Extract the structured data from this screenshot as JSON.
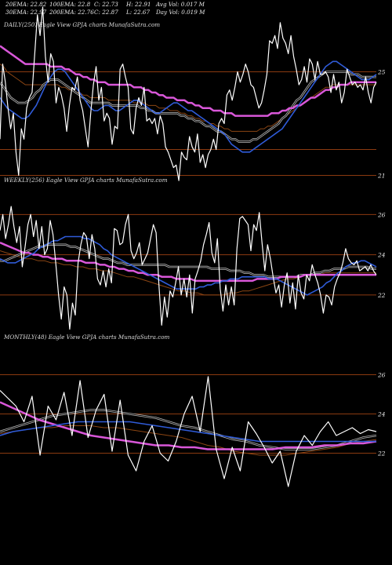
{
  "header": {
    "row1": [
      "20EMA: 22.82",
      "100EMA: 22.8",
      "C: 22.73",
      "H: 22.91",
      "Avg Vol: 0.017 M"
    ],
    "row2": [
      "30EMA: 22.97",
      "200EMA: 22.76",
      "C: 22.87",
      "L: 22.67",
      "Day Vol: 0.019 M"
    ]
  },
  "colors": {
    "background": "#000000",
    "price": "#ffffff",
    "ema_blue": "#2f5bd8",
    "ema_magenta": "#d957d9",
    "ema_brown": "#8b4513",
    "ema_gray": "#bbbbbb",
    "hline": "#8b3a10"
  },
  "chart_data": [
    {
      "type": "line",
      "title": "DAILY(250) Eagle   View  GPJA charts MunafaSutra.com",
      "yticks": [
        "25",
        "21"
      ],
      "ylim": [
        20.5,
        26.5
      ],
      "ref_lines": [
        25.0,
        22.0,
        21.0
      ],
      "price": [
        22.4,
        25.3,
        24.6,
        23.6,
        22.8,
        23.4,
        21.9,
        21.0,
        22.8,
        22.4,
        23.6,
        24.0,
        24.2,
        25.7,
        27.2,
        26.4,
        27.5,
        25.6,
        24.6,
        25.7,
        25.4,
        23.8,
        24.4,
        24.1,
        23.6,
        22.7,
        23.7,
        24.4,
        24.3,
        24.8,
        23.9,
        23.5,
        22.8,
        22.1,
        23.4,
        24.5,
        25.2,
        23.9,
        24.4,
        23.1,
        23.4,
        23.2,
        22.2,
        22.9,
        22.8,
        25.1,
        25.3,
        24.8,
        24.4,
        22.8,
        22.6,
        23.6,
        24.0,
        23.7,
        24.4,
        23.1,
        23.2,
        23.0,
        23.2,
        22.6,
        23.3,
        23.0,
        22.1,
        21.9,
        21.6,
        21.3,
        21.4,
        20.8,
        21.9,
        21.7,
        21.6,
        22.5,
        22.1,
        21.9,
        22.6,
        21.5,
        21.8,
        21.3,
        21.8,
        22.0,
        22.4,
        22.0,
        23.0,
        23.2,
        23.0,
        24.1,
        24.3,
        23.9,
        24.4,
        25.0,
        24.6,
        24.9,
        25.3,
        25.0,
        24.5,
        24.4,
        24.0,
        23.6,
        23.8,
        24.3,
        24.9,
        26.2,
        26.1,
        26.4,
        25.9,
        26.9,
        26.3,
        26.1,
        25.7,
        26.4,
        25.6,
        25.1,
        24.5,
        24.7,
        25.2,
        24.6,
        25.5,
        25.3,
        24.7,
        25.4,
        24.9,
        24.9,
        25.0,
        24.8,
        24.2,
        24.9,
        24.3,
        24.6,
        23.8,
        24.2,
        25.1,
        24.8,
        24.5,
        24.6,
        24.4,
        24.5,
        24.3,
        24.8,
        24.2,
        23.8,
        24.4,
        24.6
      ],
      "ema_blue": [
        24.0,
        23.8,
        23.6,
        23.5,
        23.4,
        23.3,
        23.2,
        23.2,
        23.3,
        23.5,
        23.7,
        24.0,
        24.3,
        24.6,
        24.8,
        25.0,
        25.1,
        25.1,
        25.0,
        24.8,
        24.6,
        24.4,
        24.2,
        24.0,
        23.8,
        23.6,
        23.5,
        23.5,
        23.6,
        23.7,
        23.7,
        23.6,
        23.5,
        23.5,
        23.6,
        23.7,
        23.8,
        23.9,
        23.9,
        23.8,
        23.7,
        23.6,
        23.5,
        23.4,
        23.4,
        23.5,
        23.6,
        23.7,
        23.8,
        23.8,
        23.7,
        23.6,
        23.5,
        23.5,
        23.4,
        23.3,
        23.2,
        23.1,
        23.0,
        22.9,
        22.8,
        22.7,
        22.6,
        22.4,
        22.2,
        22.1,
        22.0,
        21.9,
        21.9,
        21.9,
        22.0,
        22.1,
        22.2,
        22.3,
        22.4,
        22.5,
        22.6,
        22.7,
        22.8,
        23.0,
        23.2,
        23.4,
        23.6,
        23.8,
        24.0,
        24.2,
        24.4,
        24.6,
        24.8,
        25.0,
        25.2,
        25.3,
        25.4,
        25.4,
        25.3,
        25.2,
        25.1,
        25.0,
        24.9,
        24.8,
        24.7,
        24.7,
        24.7,
        24.8,
        24.9
      ],
      "ema_gray": [
        24.6,
        24.4,
        24.2,
        24.0,
        23.9,
        23.8,
        23.8,
        23.8,
        23.9,
        24.0,
        24.2,
        24.3,
        24.5,
        24.6,
        24.7,
        24.7,
        24.7,
        24.6,
        24.5,
        24.4,
        24.3,
        24.2,
        24.1,
        24.0,
        23.9,
        23.8,
        23.8,
        23.8,
        23.8,
        23.8,
        23.8,
        23.7,
        23.7,
        23.7,
        23.7,
        23.7,
        23.7,
        23.7,
        23.7,
        23.6,
        23.6,
        23.5,
        23.5,
        23.4,
        23.4,
        23.4,
        23.4,
        23.4,
        23.4,
        23.4,
        23.3,
        23.3,
        23.2,
        23.2,
        23.1,
        23.1,
        23.0,
        22.9,
        22.9,
        22.8,
        22.7,
        22.7,
        22.6,
        22.5,
        22.4,
        22.4,
        22.3,
        22.3,
        22.3,
        22.3,
        22.4,
        22.4,
        22.5,
        22.6,
        22.7,
        22.8,
        22.9,
        23.0,
        23.2,
        23.3,
        23.5,
        23.7,
        23.9,
        24.0,
        24.2,
        24.4,
        24.6,
        24.7,
        24.8,
        24.9,
        25.0,
        25.0,
        25.0,
        25.0,
        25.0,
        25.0,
        25.0,
        24.9,
        24.9,
        24.9,
        24.8,
        24.8,
        24.8,
        24.8,
        24.8
      ],
      "ema_magenta": [
        26.0,
        25.9,
        25.8,
        25.7,
        25.6,
        25.5,
        25.4,
        25.3,
        25.3,
        25.3,
        25.3,
        25.3,
        25.3,
        25.3,
        25.2,
        25.2,
        25.2,
        25.2,
        25.1,
        25.1,
        25.0,
        24.9,
        24.9,
        24.8,
        24.8,
        24.7,
        24.7,
        24.6,
        24.6,
        24.6,
        24.5,
        24.5,
        24.5,
        24.5,
        24.5,
        24.5,
        24.5,
        24.4,
        24.4,
        24.4,
        24.3,
        24.3,
        24.2,
        24.2,
        24.1,
        24.1,
        24.0,
        24.0,
        24.0,
        23.9,
        23.9,
        23.9,
        23.8,
        23.8,
        23.7,
        23.7,
        23.6,
        23.6,
        23.6,
        23.5,
        23.5,
        23.5,
        23.4,
        23.4,
        23.4,
        23.3,
        23.3,
        23.3,
        23.3,
        23.3,
        23.3,
        23.3,
        23.3,
        23.3,
        23.3,
        23.4,
        23.4,
        23.4,
        23.5,
        23.5,
        23.6,
        23.6,
        23.7,
        23.7,
        23.8,
        23.9,
        24.0,
        24.0,
        24.1,
        24.2,
        24.3,
        24.3,
        24.4,
        24.4,
        24.5,
        24.5,
        24.5,
        24.6,
        24.6,
        24.6,
        24.6,
        24.6,
        24.6,
        24.6,
        24.6
      ],
      "ema_brown": [
        25.3,
        25.2,
        25.0,
        24.9,
        24.8,
        24.7,
        24.6,
        24.5,
        24.5,
        24.5,
        24.5,
        24.5,
        24.5,
        24.5,
        24.5,
        24.5,
        24.5,
        24.4,
        24.4,
        24.3,
        24.3,
        24.2,
        24.2,
        24.1,
        24.1,
        24.0,
        24.0,
        24.0,
        24.0,
        24.0,
        23.9,
        23.9,
        23.9,
        23.9,
        23.9,
        23.9,
        23.9,
        23.8,
        23.8,
        23.8,
        23.8,
        23.7,
        23.7,
        23.7,
        23.6,
        23.6,
        23.6,
        23.5,
        23.5,
        23.5,
        23.4,
        23.4,
        23.3,
        23.3,
        23.2,
        23.2,
        23.1,
        23.1,
        23.0,
        23.0,
        22.9,
        22.9,
        22.8,
        22.8,
        22.7,
        22.7,
        22.7,
        22.7,
        22.7,
        22.7,
        22.7,
        22.7,
        22.8,
        22.8,
        22.9,
        22.9,
        23.0,
        23.1,
        23.2,
        23.3,
        23.4,
        23.5,
        23.6,
        23.7,
        23.8,
        23.9,
        24.0,
        24.1,
        24.2,
        24.3,
        24.4,
        24.4,
        24.5,
        24.5,
        24.5,
        24.5,
        24.5,
        24.5,
        24.5,
        24.5,
        24.5,
        24.5,
        24.5,
        24.5,
        24.5
      ]
    },
    {
      "type": "line",
      "title": "WEEKLY(256) Eagle   View  GPJA charts MunafaSutra.com",
      "yticks": [
        "26",
        "24",
        "22"
      ],
      "ylim": [
        19.5,
        27.3
      ],
      "ref_lines": [
        26.0,
        24.0,
        22.0
      ],
      "price": [
        25.2,
        26.0,
        24.8,
        25.5,
        26.4,
        25.4,
        24.6,
        25.4,
        23.4,
        24.4,
        25.5,
        26.0,
        24.9,
        25.7,
        24.3,
        25.4,
        24.0,
        24.3,
        25.7,
        25.0,
        23.6,
        22.0,
        20.8,
        22.4,
        22.0,
        20.3,
        21.6,
        21.0,
        23.6,
        24.5,
        25.1,
        24.9,
        23.8,
        25.0,
        24.3,
        22.8,
        22.5,
        23.2,
        22.4,
        23.3,
        22.6,
        25.3,
        25.2,
        24.5,
        24.6,
        25.5,
        26.0,
        24.2,
        23.8,
        24.1,
        24.6,
        23.5,
        23.8,
        24.1,
        24.8,
        25.5,
        25.1,
        22.5,
        20.5,
        21.9,
        20.9,
        22.2,
        21.9,
        22.6,
        23.4,
        22.0,
        22.8,
        21.9,
        23.0,
        21.1,
        22.8,
        23.2,
        23.7,
        24.5,
        25.0,
        25.6,
        24.1,
        23.6,
        24.8,
        22.3,
        21.2,
        22.5,
        21.5,
        22.4,
        21.5,
        24.3,
        25.8,
        25.9,
        25.7,
        25.5,
        24.2,
        25.5,
        25.2,
        26.1,
        24.6,
        23.2,
        24.5,
        23.8,
        22.9,
        22.1,
        22.5,
        21.4,
        22.5,
        23.1,
        21.6,
        22.6,
        21.3,
        23.0,
        22.1,
        21.8,
        23.0,
        22.7,
        23.5,
        23.0,
        22.6,
        22.0,
        21.1,
        22.0,
        21.9,
        21.5,
        22.4,
        22.8,
        23.1,
        23.6,
        24.3,
        23.8,
        23.6,
        23.5,
        23.7,
        23.2,
        23.3,
        23.4,
        23.2,
        23.5,
        23.2,
        23.0
      ],
      "ema_blue": [
        23.8,
        23.7,
        23.6,
        23.6,
        23.6,
        23.7,
        23.8,
        23.9,
        24.0,
        24.1,
        24.3,
        24.4,
        24.5,
        24.6,
        24.7,
        24.7,
        24.8,
        24.9,
        24.9,
        24.9,
        24.9,
        24.9,
        24.8,
        24.8,
        24.7,
        24.6,
        24.5,
        24.3,
        24.2,
        24.0,
        23.9,
        23.8,
        23.7,
        23.6,
        23.5,
        23.4,
        23.3,
        23.2,
        23.1,
        23.0,
        22.9,
        22.8,
        22.7,
        22.6,
        22.5,
        22.4,
        22.3,
        22.3,
        22.3,
        22.3,
        22.3,
        22.3,
        22.4,
        22.4,
        22.5,
        22.5,
        22.6,
        22.6,
        22.7,
        22.7,
        22.8,
        22.8,
        22.8,
        22.9,
        22.9,
        22.9,
        22.9,
        22.9,
        22.9,
        22.9,
        22.8,
        22.8,
        22.8,
        22.7,
        22.6,
        22.5,
        22.4,
        22.3,
        22.2,
        22.1,
        22.0,
        22.1,
        22.2,
        22.3,
        22.4,
        22.6,
        22.7,
        22.9,
        23.1,
        23.2,
        23.4,
        23.5,
        23.6,
        23.6,
        23.7,
        23.7,
        23.6,
        23.5,
        23.4
      ],
      "ema_gray": [
        23.7,
        23.7,
        23.8,
        23.9,
        24.0,
        24.1,
        24.2,
        24.3,
        24.4,
        24.4,
        24.5,
        24.5,
        24.5,
        24.5,
        24.5,
        24.4,
        24.4,
        24.3,
        24.2,
        24.1,
        24.0,
        23.9,
        23.8,
        23.8,
        23.7,
        23.6,
        23.6,
        23.5,
        23.5,
        23.5,
        23.5,
        23.5,
        23.5,
        23.5,
        23.5,
        23.5,
        23.4,
        23.4,
        23.4,
        23.4,
        23.4,
        23.4,
        23.4,
        23.4,
        23.4,
        23.3,
        23.3,
        23.3,
        23.3,
        23.2,
        23.2,
        23.2,
        23.1,
        23.1,
        23.0,
        23.0,
        23.0,
        22.9,
        22.9,
        22.9,
        22.9,
        22.9,
        22.9,
        22.9,
        23.0,
        23.0,
        23.0,
        23.1,
        23.1,
        23.2,
        23.2,
        23.3,
        23.3,
        23.3,
        23.4,
        23.4,
        23.4,
        23.4,
        23.4,
        23.3,
        23.3
      ],
      "ema_magenta": [
        24.6,
        24.5,
        24.4,
        24.3,
        24.2,
        24.1,
        24.1,
        24.0,
        24.0,
        23.9,
        23.9,
        23.8,
        23.8,
        23.8,
        23.7,
        23.7,
        23.7,
        23.7,
        23.6,
        23.6,
        23.6,
        23.5,
        23.5,
        23.4,
        23.4,
        23.3,
        23.3,
        23.2,
        23.2,
        23.1,
        23.1,
        23.0,
        23.0,
        23.0,
        22.9,
        22.9,
        22.9,
        22.8,
        22.8,
        22.8,
        22.8,
        22.7,
        22.7,
        22.7,
        22.7,
        22.7,
        22.7,
        22.7,
        22.7,
        22.7,
        22.7,
        22.7,
        22.7,
        22.7,
        22.8,
        22.8,
        22.8,
        22.8,
        22.8,
        22.9,
        22.9,
        22.9,
        22.9,
        22.9,
        23.0,
        23.0,
        23.0,
        23.0,
        23.0,
        23.0,
        23.0,
        23.0,
        23.0,
        23.0,
        23.0,
        23.0,
        23.0,
        23.0,
        23.0,
        23.0
      ],
      "ema_brown": [
        24.2,
        24.1,
        24.0,
        23.9,
        23.8,
        23.8,
        23.7,
        23.7,
        23.6,
        23.6,
        23.5,
        23.5,
        23.4,
        23.4,
        23.3,
        23.3,
        23.2,
        23.2,
        23.1,
        23.0,
        22.9,
        22.9,
        22.8,
        22.7,
        22.6,
        22.5,
        22.4,
        22.3,
        22.2,
        22.2,
        22.1,
        22.1,
        22.0,
        22.0,
        22.0,
        22.0,
        22.1,
        22.1,
        22.2,
        22.2,
        22.3,
        22.4,
        22.5,
        22.6,
        22.7,
        22.8,
        22.8,
        22.9,
        23.0,
        23.0,
        23.0,
        23.1,
        23.1,
        23.1,
        23.1,
        23.1,
        23.1,
        23.1,
        23.1,
        23.1
      ]
    },
    {
      "type": "line",
      "title": "MONTHLY(48) Eagle   View  GPJA charts MunafaSutra.com",
      "yticks": [
        "26",
        "24",
        "22"
      ],
      "ylim": [
        19.5,
        27.5
      ],
      "ref_lines": [
        26.0,
        24.0,
        22.0
      ],
      "price": [
        25.2,
        24.8,
        24.4,
        23.6,
        24.9,
        21.9,
        24.4,
        23.7,
        25.1,
        22.9,
        25.7,
        22.8,
        24.2,
        25.0,
        22.1,
        24.7,
        21.9,
        21.1,
        22.6,
        23.4,
        22.0,
        21.6,
        22.6,
        24.0,
        24.9,
        23.1,
        25.9,
        22.2,
        20.7,
        22.3,
        21.1,
        23.6,
        23.0,
        22.3,
        21.5,
        22.1,
        20.3,
        22.1,
        22.9,
        22.4,
        23.1,
        23.6,
        22.9,
        23.1,
        23.3,
        23.0,
        23.2,
        23.1
      ],
      "ema_blue": [
        22.9,
        23.1,
        23.2,
        23.3,
        23.4,
        23.5,
        23.6,
        23.6,
        23.6,
        23.6,
        23.6,
        23.5,
        23.4,
        23.3,
        23.2,
        23.1,
        23.0,
        22.9,
        22.8,
        22.7,
        22.6,
        22.6,
        22.6,
        22.6,
        22.6,
        22.6,
        22.6,
        22.6,
        22.6,
        22.6
      ],
      "ema_gray": [
        23.1,
        23.3,
        23.5,
        23.7,
        23.9,
        24.0,
        24.1,
        24.2,
        24.2,
        24.1,
        24.0,
        23.9,
        23.8,
        23.6,
        23.4,
        23.3,
        23.1,
        22.9,
        22.7,
        22.6,
        22.4,
        22.3,
        22.2,
        22.2,
        22.2,
        22.3,
        22.4,
        22.6,
        22.8,
        22.9
      ],
      "ema_magenta": [
        24.6,
        24.3,
        24.0,
        23.7,
        23.5,
        23.3,
        23.1,
        22.9,
        22.8,
        22.7,
        22.6,
        22.5,
        22.4,
        22.4,
        22.3,
        22.3,
        22.2,
        22.2,
        22.2,
        22.2,
        22.2,
        22.2,
        22.3,
        22.3,
        22.3,
        22.4,
        22.4,
        22.5,
        22.5,
        22.6
      ],
      "ema_brown": [
        23.0,
        23.1,
        23.2,
        23.3,
        23.3,
        23.4,
        23.4,
        23.4,
        23.3,
        23.3,
        23.2,
        23.1,
        23.0,
        22.9,
        22.8,
        22.6,
        22.4,
        22.3,
        22.1,
        22.0,
        21.9,
        21.9,
        21.9,
        22.0,
        22.1,
        22.2,
        22.3,
        22.5,
        22.6,
        22.7
      ]
    }
  ]
}
